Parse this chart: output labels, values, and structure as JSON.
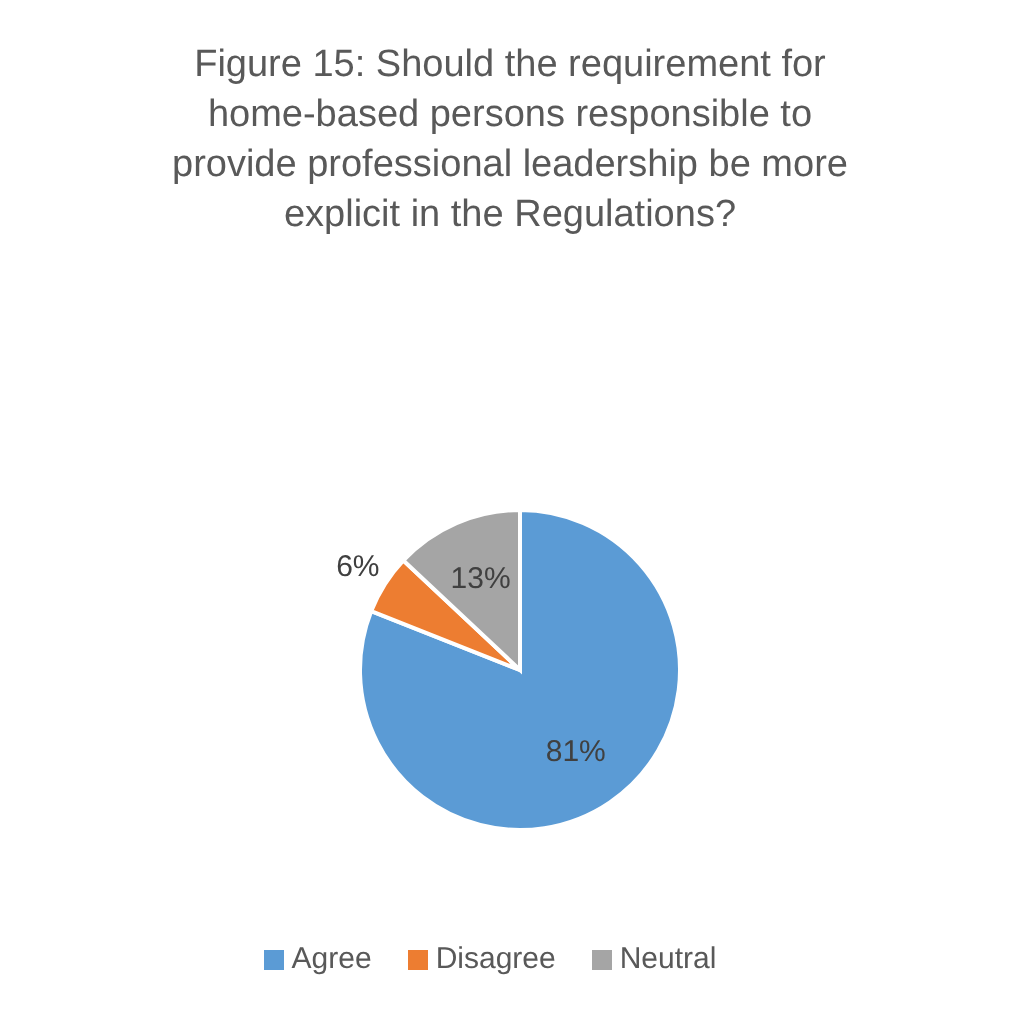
{
  "chart_data": {
    "type": "pie",
    "title": "Figure 15: Should the requirement for home-based persons responsible to provide professional leadership be more explicit in the Regulations?",
    "categories": [
      "Agree",
      "Disagree",
      "Neutral"
    ],
    "values": [
      81,
      6,
      13
    ],
    "colors": [
      "#5b9bd5",
      "#ed7d31",
      "#a5a5a5"
    ],
    "value_labels": [
      "81%",
      "6%",
      "13%"
    ],
    "legend": "bottom"
  }
}
